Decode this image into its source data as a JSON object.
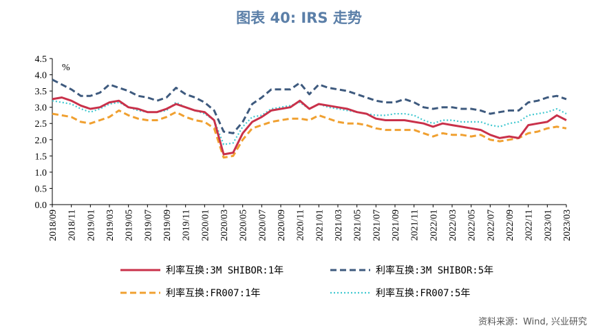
{
  "title": "图表 40: IRS 走势",
  "source": "资料来源：Wind, 兴业研究",
  "chart_data": {
    "type": "line",
    "unit_label": "%",
    "ylim": [
      0,
      4.5
    ],
    "yticks": [
      "4.5",
      "4.0",
      "3.5",
      "3.0",
      "2.5",
      "2.0",
      "1.5",
      "1.0",
      "0.5",
      "0.0"
    ],
    "ytick_values": [
      4.5,
      4.0,
      3.5,
      3.0,
      2.5,
      2.0,
      1.5,
      1.0,
      0.5,
      0.0
    ],
    "xlim": [
      "2018/09",
      "2023/03"
    ],
    "xticks": [
      "2018/09",
      "2018/11",
      "2019/01",
      "2019/03",
      "2019/05",
      "2019/07",
      "2019/09",
      "2019/11",
      "2020/01",
      "2020/03",
      "2020/05",
      "2020/07",
      "2020/09",
      "2020/11",
      "2021/01",
      "2021/03",
      "2021/05",
      "2021/07",
      "2021/09",
      "2021/11",
      "2022/01",
      "2022/03",
      "2022/05",
      "2022/07",
      "2022/09",
      "2022/11",
      "2023/01",
      "2023/03"
    ],
    "grid": false,
    "legend_position": "bottom",
    "series": [
      {
        "name": "利率互换:3M SHIBOR:1年",
        "color": "#c9314a",
        "style": "solid",
        "x": [
          "2018/09",
          "2018/10",
          "2018/11",
          "2018/12",
          "2019/01",
          "2019/02",
          "2019/03",
          "2019/04",
          "2019/05",
          "2019/06",
          "2019/07",
          "2019/08",
          "2019/09",
          "2019/10",
          "2019/11",
          "2019/12",
          "2020/01",
          "2020/02",
          "2020/03",
          "2020/04",
          "2020/05",
          "2020/06",
          "2020/07",
          "2020/08",
          "2020/09",
          "2020/10",
          "2020/11",
          "2020/12",
          "2021/01",
          "2021/02",
          "2021/03",
          "2021/04",
          "2021/05",
          "2021/06",
          "2021/07",
          "2021/08",
          "2021/09",
          "2021/10",
          "2021/11",
          "2021/12",
          "2022/01",
          "2022/02",
          "2022/03",
          "2022/04",
          "2022/05",
          "2022/06",
          "2022/07",
          "2022/08",
          "2022/09",
          "2022/10",
          "2022/11",
          "2022/12",
          "2023/01",
          "2023/02",
          "2023/03"
        ],
        "values": [
          3.25,
          3.3,
          3.2,
          3.05,
          2.95,
          3.0,
          3.15,
          3.2,
          3.0,
          2.95,
          2.85,
          2.85,
          2.95,
          3.1,
          3.0,
          2.9,
          2.85,
          2.6,
          1.55,
          1.6,
          2.2,
          2.55,
          2.7,
          2.9,
          2.95,
          3.0,
          3.2,
          2.95,
          3.1,
          3.05,
          3.0,
          2.95,
          2.85,
          2.8,
          2.65,
          2.6,
          2.6,
          2.6,
          2.55,
          2.5,
          2.4,
          2.5,
          2.45,
          2.4,
          2.35,
          2.3,
          2.15,
          2.05,
          2.1,
          2.05,
          2.45,
          2.5,
          2.55,
          2.75,
          2.6
        ]
      },
      {
        "name": "利率互换:3M SHIBOR:5年",
        "color": "#3e5a7e",
        "style": "dashed",
        "x": [
          "2018/09",
          "2018/10",
          "2018/11",
          "2018/12",
          "2019/01",
          "2019/02",
          "2019/03",
          "2019/04",
          "2019/05",
          "2019/06",
          "2019/07",
          "2019/08",
          "2019/09",
          "2019/10",
          "2019/11",
          "2019/12",
          "2020/01",
          "2020/02",
          "2020/03",
          "2020/04",
          "2020/05",
          "2020/06",
          "2020/07",
          "2020/08",
          "2020/09",
          "2020/10",
          "2020/11",
          "2020/12",
          "2021/01",
          "2021/02",
          "2021/03",
          "2021/04",
          "2021/05",
          "2021/06",
          "2021/07",
          "2021/08",
          "2021/09",
          "2021/10",
          "2021/11",
          "2021/12",
          "2022/01",
          "2022/02",
          "2022/03",
          "2022/04",
          "2022/05",
          "2022/06",
          "2022/07",
          "2022/08",
          "2022/09",
          "2022/10",
          "2022/11",
          "2022/12",
          "2023/01",
          "2023/02",
          "2023/03"
        ],
        "values": [
          3.85,
          3.7,
          3.55,
          3.35,
          3.35,
          3.45,
          3.7,
          3.6,
          3.5,
          3.35,
          3.3,
          3.2,
          3.3,
          3.6,
          3.4,
          3.3,
          3.15,
          2.9,
          2.25,
          2.2,
          2.55,
          3.1,
          3.3,
          3.55,
          3.55,
          3.55,
          3.75,
          3.4,
          3.7,
          3.6,
          3.55,
          3.5,
          3.4,
          3.3,
          3.2,
          3.15,
          3.15,
          3.25,
          3.15,
          3.0,
          2.95,
          3.0,
          3.0,
          2.95,
          2.95,
          2.9,
          2.8,
          2.85,
          2.9,
          2.9,
          3.15,
          3.2,
          3.3,
          3.35,
          3.25
        ]
      },
      {
        "name": "利率互换:FR007:1年",
        "color": "#f0a030",
        "style": "dashed",
        "x": [
          "2018/09",
          "2018/10",
          "2018/11",
          "2018/12",
          "2019/01",
          "2019/02",
          "2019/03",
          "2019/04",
          "2019/05",
          "2019/06",
          "2019/07",
          "2019/08",
          "2019/09",
          "2019/10",
          "2019/11",
          "2019/12",
          "2020/01",
          "2020/02",
          "2020/03",
          "2020/04",
          "2020/05",
          "2020/06",
          "2020/07",
          "2020/08",
          "2020/09",
          "2020/10",
          "2020/11",
          "2020/12",
          "2021/01",
          "2021/02",
          "2021/03",
          "2021/04",
          "2021/05",
          "2021/06",
          "2021/07",
          "2021/08",
          "2021/09",
          "2021/10",
          "2021/11",
          "2021/12",
          "2022/01",
          "2022/02",
          "2022/03",
          "2022/04",
          "2022/05",
          "2022/06",
          "2022/07",
          "2022/08",
          "2022/09",
          "2022/10",
          "2022/11",
          "2022/12",
          "2023/01",
          "2023/02",
          "2023/03"
        ],
        "values": [
          2.8,
          2.75,
          2.7,
          2.55,
          2.5,
          2.6,
          2.7,
          2.9,
          2.75,
          2.65,
          2.6,
          2.6,
          2.7,
          2.85,
          2.7,
          2.6,
          2.55,
          2.35,
          1.45,
          1.5,
          2.0,
          2.35,
          2.45,
          2.55,
          2.6,
          2.65,
          2.65,
          2.6,
          2.75,
          2.65,
          2.55,
          2.5,
          2.5,
          2.45,
          2.35,
          2.3,
          2.3,
          2.3,
          2.3,
          2.2,
          2.1,
          2.2,
          2.15,
          2.15,
          2.1,
          2.15,
          2.0,
          1.95,
          2.0,
          2.05,
          2.2,
          2.25,
          2.35,
          2.4,
          2.35
        ]
      },
      {
        "name": "利率互换:FR007:5年",
        "color": "#40c8d0",
        "style": "dotted",
        "x": [
          "2018/09",
          "2018/10",
          "2018/11",
          "2018/12",
          "2019/01",
          "2019/02",
          "2019/03",
          "2019/04",
          "2019/05",
          "2019/06",
          "2019/07",
          "2019/08",
          "2019/09",
          "2019/10",
          "2019/11",
          "2019/12",
          "2020/01",
          "2020/02",
          "2020/03",
          "2020/04",
          "2020/05",
          "2020/06",
          "2020/07",
          "2020/08",
          "2020/09",
          "2020/10",
          "2020/11",
          "2020/12",
          "2021/01",
          "2021/02",
          "2021/03",
          "2021/04",
          "2021/05",
          "2021/06",
          "2021/07",
          "2021/08",
          "2021/09",
          "2021/10",
          "2021/11",
          "2021/12",
          "2022/01",
          "2022/02",
          "2022/03",
          "2022/04",
          "2022/05",
          "2022/06",
          "2022/07",
          "2022/08",
          "2022/09",
          "2022/10",
          "2022/11",
          "2022/12",
          "2023/01",
          "2023/02",
          "2023/03"
        ],
        "values": [
          3.2,
          3.15,
          3.1,
          2.95,
          2.85,
          2.95,
          3.1,
          3.15,
          3.0,
          2.9,
          2.85,
          2.85,
          2.9,
          3.15,
          3.0,
          2.9,
          2.8,
          2.6,
          1.85,
          1.9,
          2.4,
          2.7,
          2.75,
          2.95,
          3.0,
          3.05,
          3.15,
          2.95,
          3.1,
          3.0,
          2.95,
          2.9,
          2.85,
          2.8,
          2.75,
          2.75,
          2.8,
          2.8,
          2.75,
          2.6,
          2.5,
          2.6,
          2.6,
          2.55,
          2.55,
          2.55,
          2.45,
          2.4,
          2.5,
          2.55,
          2.75,
          2.8,
          2.85,
          2.95,
          2.8
        ]
      }
    ]
  }
}
